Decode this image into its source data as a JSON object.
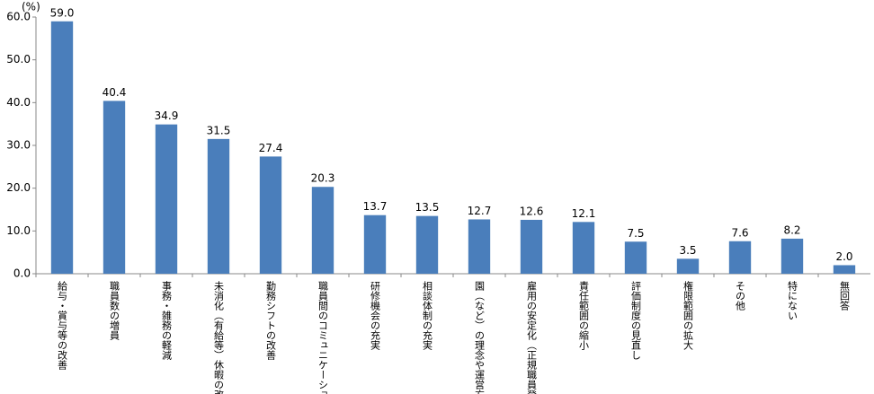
{
  "chart_data": {
    "type": "bar",
    "unit_label": "(%)",
    "categories": [
      "給与・賞与等の改善",
      "職員数の増員",
      "事務・雑務の軽減",
      "未消化（有給等）休暇の改善",
      "勤務シフトの改善",
      "職員間のコミュニケーション",
      "研修機会の充実",
      "相談体制の充実",
      "園（など）の理念や運営方針",
      "雇用の安定化（正規職員登用",
      "責任範囲の縮小",
      "評価制度の見直し",
      "権限範囲の拡大",
      "その他",
      "特にない",
      "無回答"
    ],
    "values": [
      59.0,
      40.4,
      34.9,
      31.5,
      27.4,
      20.3,
      13.7,
      13.5,
      12.7,
      12.6,
      12.1,
      7.5,
      3.5,
      7.6,
      8.2,
      2.0
    ],
    "value_labels": [
      "59.0",
      "40.4",
      "34.9",
      "31.5",
      "27.4",
      "20.3",
      "13.7",
      "13.5",
      "12.7",
      "12.6",
      "12.1",
      "7.5",
      "3.5",
      "7.6",
      "8.2",
      "2.0"
    ],
    "color": "#4a7ebb",
    "ylim": [
      0,
      60
    ],
    "yticks": [
      {
        "value": 0,
        "label": "0.0"
      },
      {
        "value": 10,
        "label": "10.0"
      },
      {
        "value": 20,
        "label": "20.0"
      },
      {
        "value": 30,
        "label": "30.0"
      },
      {
        "value": 40,
        "label": "40.0"
      },
      {
        "value": 50,
        "label": "50.0"
      },
      {
        "value": 60,
        "label": "60.0"
      }
    ],
    "grid": false
  }
}
